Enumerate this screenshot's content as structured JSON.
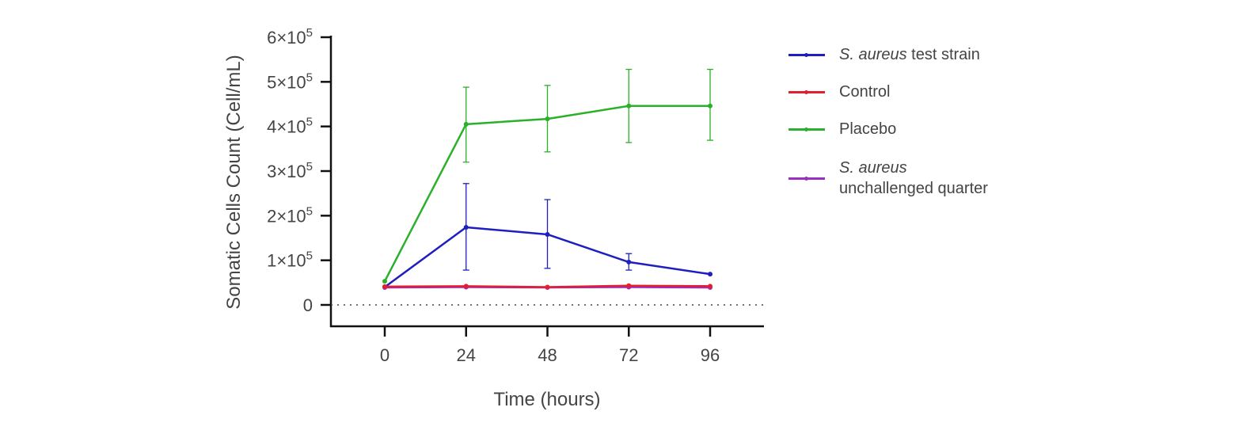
{
  "chart_data": {
    "type": "line",
    "title": "",
    "xlabel": "Time (hours)",
    "ylabel": "Somatic Cells Count (Cell/mL)",
    "x": [
      0,
      24,
      48,
      72,
      96
    ],
    "xticks": [
      "0",
      "24",
      "48",
      "72",
      "96"
    ],
    "yticks": [
      "0",
      "1×10 5",
      "2×10 5",
      "3×10 5",
      "4×10 5",
      "5×10 5",
      "6×10 5"
    ],
    "ylim": [
      0,
      600000
    ],
    "reference_line": 0,
    "legend_position": "right",
    "series": [
      {
        "name_italic": "S. aureus",
        "name_rest": " test strain",
        "color": "#1f1fbf",
        "values": [
          40000,
          174000,
          158000,
          96000,
          69000
        ],
        "err_upper": [
          null,
          272000,
          236000,
          115000,
          null
        ],
        "err_lower": [
          null,
          78000,
          82000,
          78000,
          null
        ]
      },
      {
        "name_italic": "",
        "name_rest": "Control",
        "color": "#e0202e",
        "values": [
          41000,
          42000,
          40000,
          43000,
          42000
        ],
        "err_upper": [
          null,
          null,
          null,
          null,
          null
        ],
        "err_lower": [
          null,
          null,
          null,
          null,
          null
        ]
      },
      {
        "name_italic": "",
        "name_rest": "Placebo",
        "color": "#2bb02b",
        "values": [
          53000,
          405000,
          417000,
          446000,
          446000
        ],
        "err_upper": [
          null,
          488000,
          492000,
          528000,
          528000
        ],
        "err_lower": [
          null,
          320000,
          343000,
          364000,
          369000
        ]
      },
      {
        "name_italic": "S. aureus",
        "name_rest": "unchallenged quarter",
        "color": "#9a2fc0",
        "values": [
          39000,
          40000,
          39000,
          40000,
          39000
        ],
        "err_upper": [
          null,
          null,
          null,
          null,
          null
        ],
        "err_lower": [
          null,
          null,
          null,
          null,
          null
        ]
      }
    ]
  }
}
